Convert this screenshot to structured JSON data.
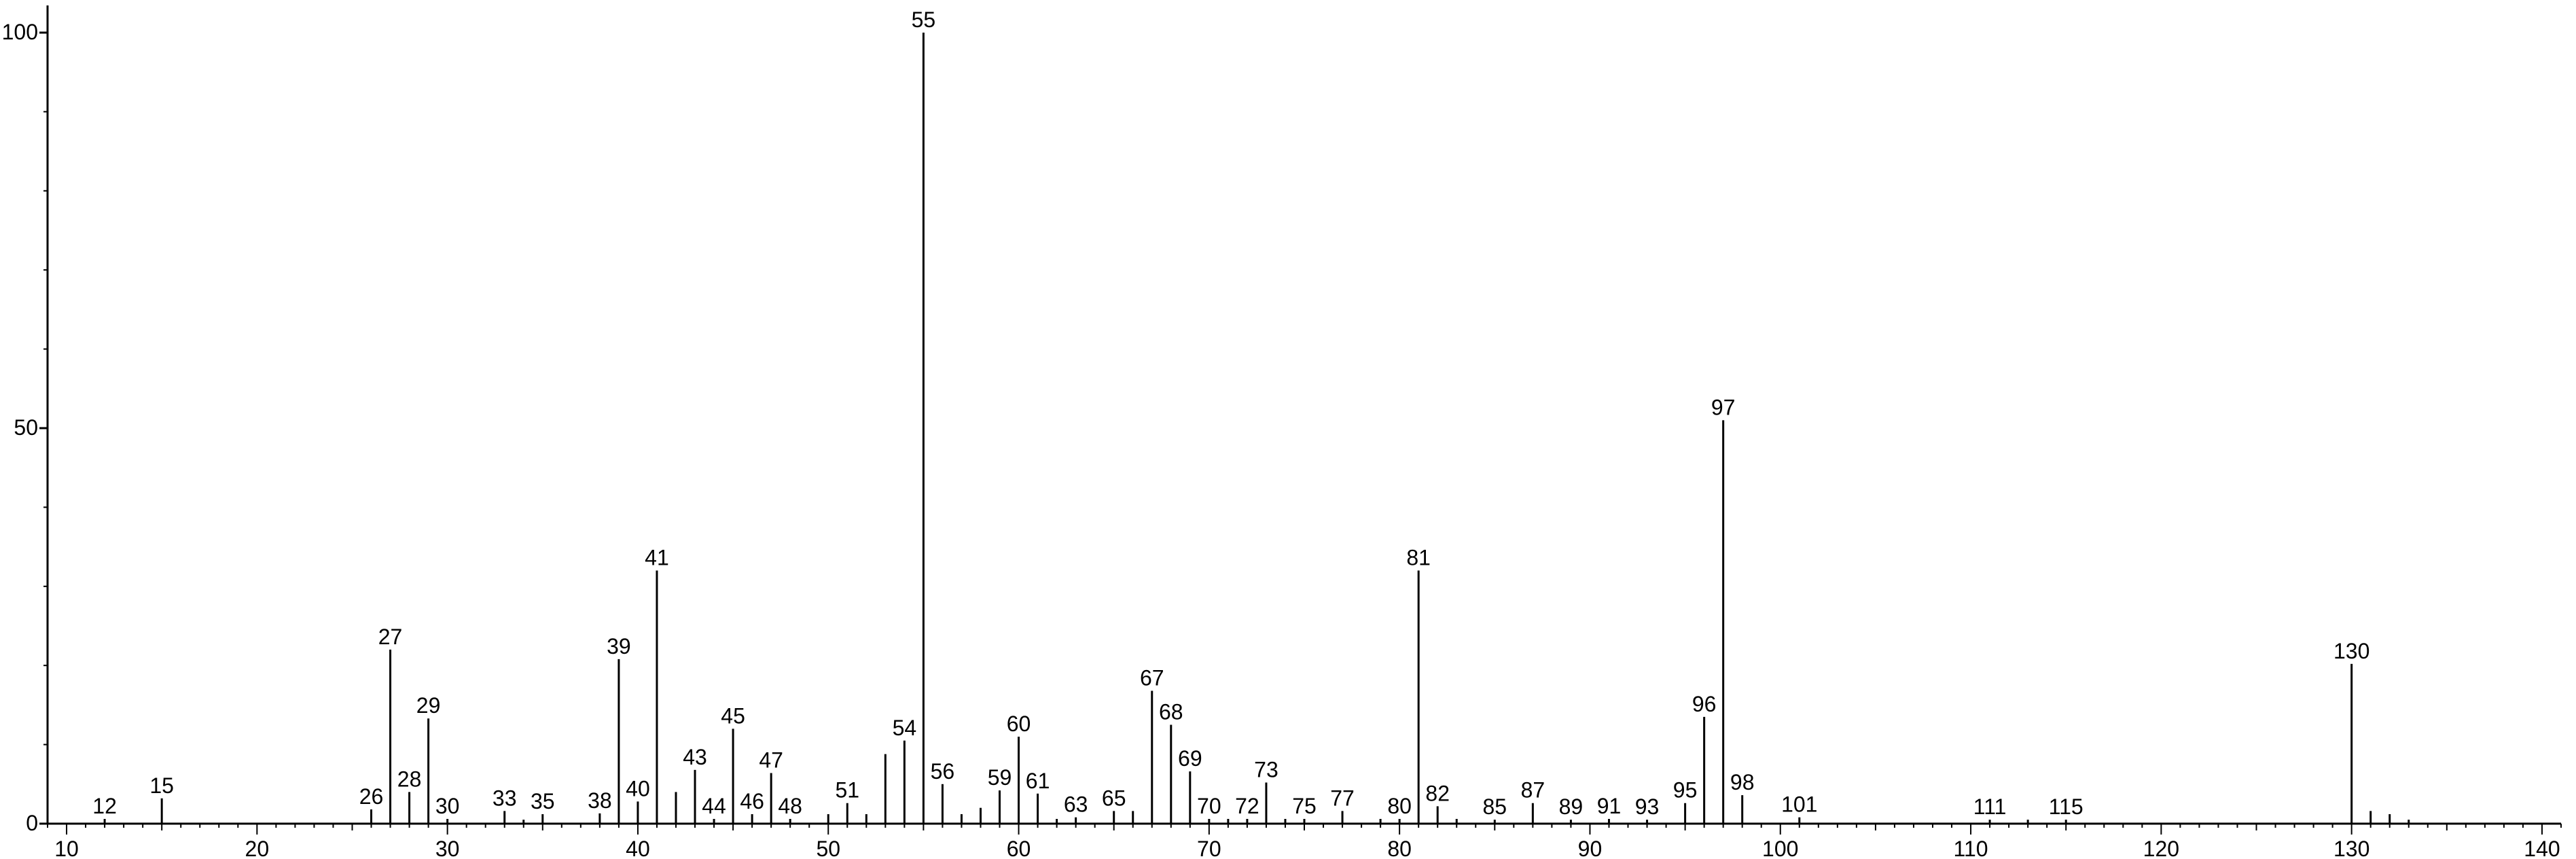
{
  "chart_data": {
    "type": "bar",
    "title": "",
    "xlabel": "",
    "ylabel": "",
    "xlim": [
      9,
      141
    ],
    "ylim": [
      0,
      100
    ],
    "x_ticks": [
      10,
      20,
      30,
      40,
      50,
      60,
      70,
      80,
      90,
      100,
      110,
      120,
      130,
      140
    ],
    "y_ticks": [
      0,
      50,
      100
    ],
    "grid": false,
    "legend": "none",
    "color": "#000000",
    "peaks": [
      {
        "mz": 12,
        "intensity": 0.6,
        "label": "12"
      },
      {
        "mz": 15,
        "intensity": 3.2,
        "label": "15"
      },
      {
        "mz": 26,
        "intensity": 1.8,
        "label": "26"
      },
      {
        "mz": 27,
        "intensity": 22.0,
        "label": "27"
      },
      {
        "mz": 28,
        "intensity": 4.0,
        "label": "28"
      },
      {
        "mz": 29,
        "intensity": 13.3,
        "label": "29"
      },
      {
        "mz": 30,
        "intensity": 0.6,
        "label": "30"
      },
      {
        "mz": 33,
        "intensity": 1.6,
        "label": "33"
      },
      {
        "mz": 34,
        "intensity": 0.5,
        "label": ""
      },
      {
        "mz": 35,
        "intensity": 1.2,
        "label": "35"
      },
      {
        "mz": 38,
        "intensity": 1.3,
        "label": "38"
      },
      {
        "mz": 39,
        "intensity": 20.8,
        "label": "39"
      },
      {
        "mz": 40,
        "intensity": 2.8,
        "label": "40"
      },
      {
        "mz": 41,
        "intensity": 32.0,
        "label": "41"
      },
      {
        "mz": 42,
        "intensity": 4.0,
        "label": ""
      },
      {
        "mz": 43,
        "intensity": 6.8,
        "label": "43"
      },
      {
        "mz": 44,
        "intensity": 0.6,
        "label": "44"
      },
      {
        "mz": 45,
        "intensity": 12.0,
        "label": "45"
      },
      {
        "mz": 46,
        "intensity": 1.2,
        "label": "46"
      },
      {
        "mz": 47,
        "intensity": 6.4,
        "label": "47"
      },
      {
        "mz": 48,
        "intensity": 0.6,
        "label": "48"
      },
      {
        "mz": 50,
        "intensity": 1.2,
        "label": ""
      },
      {
        "mz": 51,
        "intensity": 2.6,
        "label": "51"
      },
      {
        "mz": 52,
        "intensity": 1.2,
        "label": ""
      },
      {
        "mz": 53,
        "intensity": 8.8,
        "label": ""
      },
      {
        "mz": 54,
        "intensity": 10.5,
        "label": "54"
      },
      {
        "mz": 55,
        "intensity": 100.0,
        "label": "55"
      },
      {
        "mz": 56,
        "intensity": 5.0,
        "label": "56"
      },
      {
        "mz": 57,
        "intensity": 1.2,
        "label": ""
      },
      {
        "mz": 58,
        "intensity": 2.0,
        "label": ""
      },
      {
        "mz": 59,
        "intensity": 4.2,
        "label": "59"
      },
      {
        "mz": 60,
        "intensity": 11.0,
        "label": "60"
      },
      {
        "mz": 61,
        "intensity": 3.8,
        "label": "61"
      },
      {
        "mz": 62,
        "intensity": 0.6,
        "label": ""
      },
      {
        "mz": 63,
        "intensity": 0.8,
        "label": "63"
      },
      {
        "mz": 65,
        "intensity": 1.6,
        "label": "65"
      },
      {
        "mz": 66,
        "intensity": 1.6,
        "label": ""
      },
      {
        "mz": 67,
        "intensity": 16.8,
        "label": "67"
      },
      {
        "mz": 68,
        "intensity": 12.5,
        "label": "68"
      },
      {
        "mz": 69,
        "intensity": 6.6,
        "label": "69"
      },
      {
        "mz": 70,
        "intensity": 0.6,
        "label": "70"
      },
      {
        "mz": 71,
        "intensity": 0.6,
        "label": ""
      },
      {
        "mz": 72,
        "intensity": 0.6,
        "label": "72"
      },
      {
        "mz": 73,
        "intensity": 5.2,
        "label": "73"
      },
      {
        "mz": 74,
        "intensity": 0.6,
        "label": ""
      },
      {
        "mz": 75,
        "intensity": 0.6,
        "label": "75"
      },
      {
        "mz": 77,
        "intensity": 1.6,
        "label": "77"
      },
      {
        "mz": 79,
        "intensity": 0.6,
        "label": ""
      },
      {
        "mz": 80,
        "intensity": 0.6,
        "label": "80"
      },
      {
        "mz": 81,
        "intensity": 32.0,
        "label": "81"
      },
      {
        "mz": 82,
        "intensity": 2.2,
        "label": "82"
      },
      {
        "mz": 83,
        "intensity": 0.6,
        "label": ""
      },
      {
        "mz": 85,
        "intensity": 0.5,
        "label": "85"
      },
      {
        "mz": 87,
        "intensity": 2.6,
        "label": "87"
      },
      {
        "mz": 89,
        "intensity": 0.5,
        "label": "89"
      },
      {
        "mz": 91,
        "intensity": 0.6,
        "label": "91"
      },
      {
        "mz": 93,
        "intensity": 0.5,
        "label": "93"
      },
      {
        "mz": 95,
        "intensity": 2.6,
        "label": "95"
      },
      {
        "mz": 96,
        "intensity": 13.5,
        "label": "96"
      },
      {
        "mz": 97,
        "intensity": 51.0,
        "label": "97"
      },
      {
        "mz": 98,
        "intensity": 3.6,
        "label": "98"
      },
      {
        "mz": 101,
        "intensity": 0.8,
        "label": "101"
      },
      {
        "mz": 111,
        "intensity": 0.5,
        "label": "111"
      },
      {
        "mz": 113,
        "intensity": 0.5,
        "label": ""
      },
      {
        "mz": 115,
        "intensity": 0.5,
        "label": "115"
      },
      {
        "mz": 130,
        "intensity": 20.2,
        "label": "130"
      },
      {
        "mz": 131,
        "intensity": 1.6,
        "label": ""
      },
      {
        "mz": 132,
        "intensity": 1.2,
        "label": ""
      },
      {
        "mz": 133,
        "intensity": 0.5,
        "label": ""
      }
    ]
  }
}
